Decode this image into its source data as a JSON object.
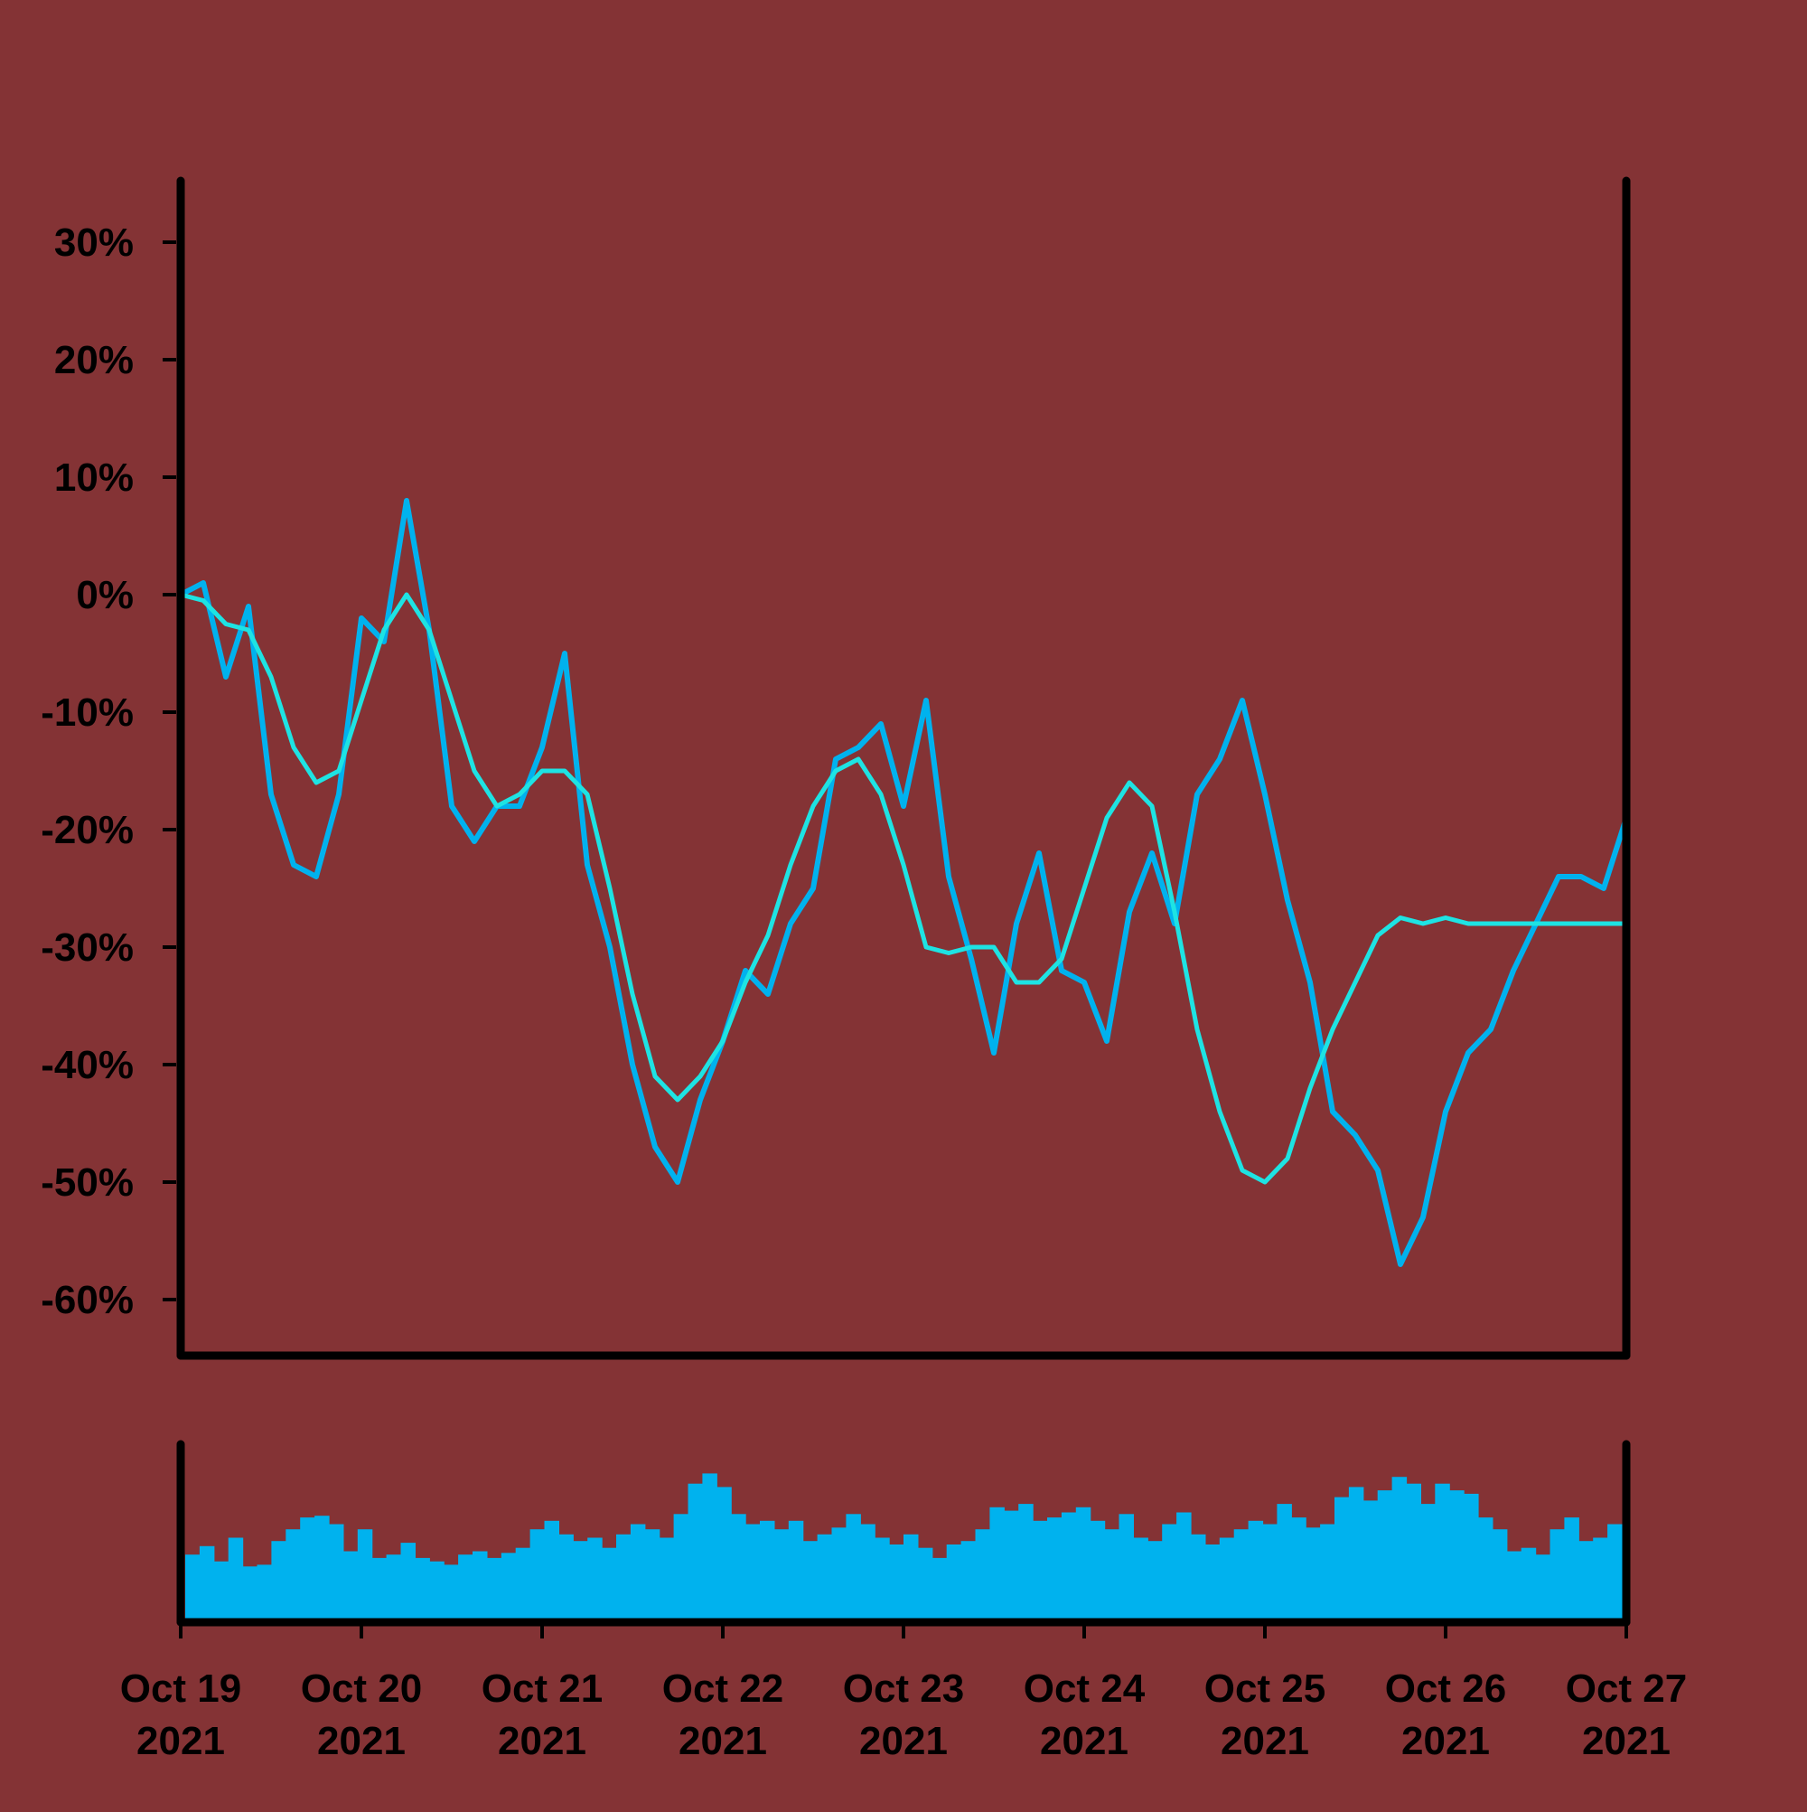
{
  "colors": {
    "background": "#843335",
    "axis": "#000000",
    "price_line": "#00B2EE",
    "ma_line": "#1EE3E3",
    "volume_bars": "#00B2EE"
  },
  "chart_data": [
    {
      "type": "line",
      "title": "",
      "xlabel": "",
      "ylabel": "",
      "ylim": [
        -65,
        35
      ],
      "xlim": [
        "2021-10-19",
        "2021-10-27"
      ],
      "y_ticks": [
        30,
        20,
        10,
        0,
        -10,
        -20,
        -30,
        -40,
        -50,
        -60
      ],
      "y_tick_labels": [
        "30%",
        "20%",
        "10%",
        "0%",
        "-10%",
        "-20%",
        "-30%",
        "-40%",
        "-50%",
        "-60%"
      ],
      "grid": false,
      "legend": "none",
      "series": [
        {
          "color": "#00B2EE",
          "x": [
            "2021-10-19 00:00",
            "2021-10-19 03:00",
            "2021-10-19 06:00",
            "2021-10-19 09:00",
            "2021-10-19 12:00",
            "2021-10-19 15:00",
            "2021-10-19 18:00",
            "2021-10-19 21:00",
            "2021-10-20 00:00",
            "2021-10-20 03:00",
            "2021-10-20 06:00",
            "2021-10-20 09:00",
            "2021-10-20 12:00",
            "2021-10-20 15:00",
            "2021-10-20 18:00",
            "2021-10-20 21:00",
            "2021-10-21 00:00",
            "2021-10-21 03:00",
            "2021-10-21 06:00",
            "2021-10-21 09:00",
            "2021-10-21 12:00",
            "2021-10-21 15:00",
            "2021-10-21 18:00",
            "2021-10-21 21:00",
            "2021-10-22 00:00",
            "2021-10-22 03:00",
            "2021-10-22 06:00",
            "2021-10-22 09:00",
            "2021-10-22 12:00",
            "2021-10-22 15:00",
            "2021-10-22 18:00",
            "2021-10-22 21:00",
            "2021-10-23 00:00",
            "2021-10-23 03:00",
            "2021-10-23 06:00",
            "2021-10-23 09:00",
            "2021-10-23 12:00",
            "2021-10-23 15:00",
            "2021-10-23 18:00",
            "2021-10-23 21:00",
            "2021-10-24 00:00",
            "2021-10-24 03:00",
            "2021-10-24 06:00",
            "2021-10-24 09:00",
            "2021-10-24 12:00",
            "2021-10-24 15:00",
            "2021-10-24 18:00",
            "2021-10-24 21:00",
            "2021-10-25 00:00",
            "2021-10-25 03:00",
            "2021-10-25 06:00",
            "2021-10-25 09:00",
            "2021-10-25 12:00",
            "2021-10-25 15:00",
            "2021-10-25 18:00",
            "2021-10-25 21:00",
            "2021-10-26 00:00",
            "2021-10-26 03:00",
            "2021-10-26 06:00",
            "2021-10-26 09:00",
            "2021-10-26 12:00",
            "2021-10-26 15:00",
            "2021-10-26 18:00",
            "2021-10-26 21:00",
            "2021-10-27 00:00"
          ],
          "y": [
            0,
            1,
            -7,
            -1,
            -17,
            -23,
            -24,
            -17,
            -2,
            -4,
            8,
            -3,
            -18,
            -21,
            -18,
            -18,
            -13,
            -5,
            -23,
            -30,
            -40,
            -47,
            -50,
            -43,
            -38,
            -32,
            -34,
            -28,
            -25,
            -14,
            -13,
            -11,
            -18,
            -9,
            -24,
            -31,
            -39,
            -28,
            -22,
            -32,
            -33,
            -38,
            -27,
            -22,
            -28,
            -17,
            -14,
            -9,
            -17,
            -26,
            -33,
            -44,
            -46,
            -49,
            -57,
            -53,
            -44,
            -39,
            -37,
            -32,
            -28,
            -24,
            -24,
            -25,
            -19
          ]
        },
        {
          "color": "#1EE3E3",
          "x": [
            "2021-10-19 00:00",
            "2021-10-19 03:00",
            "2021-10-19 06:00",
            "2021-10-19 09:00",
            "2021-10-19 12:00",
            "2021-10-19 15:00",
            "2021-10-19 18:00",
            "2021-10-19 21:00",
            "2021-10-20 00:00",
            "2021-10-20 03:00",
            "2021-10-20 06:00",
            "2021-10-20 09:00",
            "2021-10-20 12:00",
            "2021-10-20 15:00",
            "2021-10-20 18:00",
            "2021-10-20 21:00",
            "2021-10-21 00:00",
            "2021-10-21 03:00",
            "2021-10-21 06:00",
            "2021-10-21 09:00",
            "2021-10-21 12:00",
            "2021-10-21 15:00",
            "2021-10-21 18:00",
            "2021-10-21 21:00",
            "2021-10-22 00:00",
            "2021-10-22 03:00",
            "2021-10-22 06:00",
            "2021-10-22 09:00",
            "2021-10-22 12:00",
            "2021-10-22 15:00",
            "2021-10-22 18:00",
            "2021-10-22 21:00",
            "2021-10-23 00:00",
            "2021-10-23 03:00",
            "2021-10-23 06:00",
            "2021-10-23 09:00",
            "2021-10-23 12:00",
            "2021-10-23 15:00",
            "2021-10-23 18:00",
            "2021-10-23 21:00",
            "2021-10-24 00:00",
            "2021-10-24 03:00",
            "2021-10-24 06:00",
            "2021-10-24 09:00",
            "2021-10-24 12:00",
            "2021-10-24 15:00",
            "2021-10-24 18:00",
            "2021-10-24 21:00",
            "2021-10-25 00:00",
            "2021-10-25 03:00",
            "2021-10-25 06:00",
            "2021-10-25 09:00",
            "2021-10-25 12:00",
            "2021-10-25 15:00",
            "2021-10-25 18:00",
            "2021-10-25 21:00",
            "2021-10-26 00:00",
            "2021-10-26 03:00",
            "2021-10-26 06:00",
            "2021-10-26 09:00",
            "2021-10-26 12:00",
            "2021-10-26 15:00",
            "2021-10-26 18:00",
            "2021-10-26 21:00",
            "2021-10-27 00:00"
          ],
          "y": [
            0,
            -0.5,
            -2.5,
            -3,
            -7,
            -13,
            -16,
            -15,
            -9,
            -3,
            0,
            -3,
            -9,
            -15,
            -18,
            -17,
            -15,
            -15,
            -17,
            -25,
            -34,
            -41,
            -43,
            -41,
            -38,
            -33,
            -29,
            -23,
            -18,
            -15,
            -14,
            -17,
            -23,
            -30,
            -30.5,
            -30,
            -30,
            -33,
            -33,
            -31,
            -25,
            -19,
            -16,
            -18,
            -27,
            -37,
            -44,
            -49,
            -50,
            -48,
            -42,
            -37,
            -33,
            -29,
            -27.5,
            -28,
            -27.5,
            -28,
            -28,
            -28,
            -28,
            -28,
            -28,
            -28,
            -28
          ]
        }
      ]
    },
    {
      "type": "bar",
      "title": "",
      "xlabel": "",
      "ylabel": "",
      "ylim": [
        0,
        1
      ],
      "x_tick_labels": [
        {
          "month_day": "Oct 19",
          "year": "2021"
        },
        {
          "month_day": "Oct 20",
          "year": "2021"
        },
        {
          "month_day": "Oct 21",
          "year": "2021"
        },
        {
          "month_day": "Oct 22",
          "year": "2021"
        },
        {
          "month_day": "Oct 23",
          "year": "2021"
        },
        {
          "month_day": "Oct 24",
          "year": "2021"
        },
        {
          "month_day": "Oct 25",
          "year": "2021"
        },
        {
          "month_day": "Oct 26",
          "year": "2021"
        },
        {
          "month_day": "Oct 27",
          "year": "2021"
        }
      ],
      "series": [
        {
          "color": "#00B2EE",
          "values": [
            0.4,
            0.45,
            0.36,
            0.5,
            0.33,
            0.34,
            0.48,
            0.55,
            0.62,
            0.63,
            0.58,
            0.42,
            0.55,
            0.38,
            0.4,
            0.47,
            0.38,
            0.36,
            0.34,
            0.4,
            0.42,
            0.38,
            0.41,
            0.44,
            0.55,
            0.6,
            0.52,
            0.48,
            0.5,
            0.44,
            0.52,
            0.58,
            0.55,
            0.5,
            0.64,
            0.82,
            0.88,
            0.8,
            0.64,
            0.58,
            0.6,
            0.55,
            0.6,
            0.48,
            0.52,
            0.56,
            0.64,
            0.58,
            0.5,
            0.46,
            0.52,
            0.44,
            0.38,
            0.46,
            0.48,
            0.55,
            0.68,
            0.66,
            0.7,
            0.6,
            0.62,
            0.65,
            0.68,
            0.6,
            0.55,
            0.64,
            0.5,
            0.48,
            0.58,
            0.65,
            0.52,
            0.46,
            0.5,
            0.55,
            0.6,
            0.58,
            0.7,
            0.62,
            0.56,
            0.58,
            0.74,
            0.8,
            0.72,
            0.78,
            0.86,
            0.82,
            0.7,
            0.82,
            0.78,
            0.76,
            0.62,
            0.55,
            0.42,
            0.44,
            0.4,
            0.55,
            0.62,
            0.48,
            0.5,
            0.58
          ]
        }
      ]
    }
  ]
}
